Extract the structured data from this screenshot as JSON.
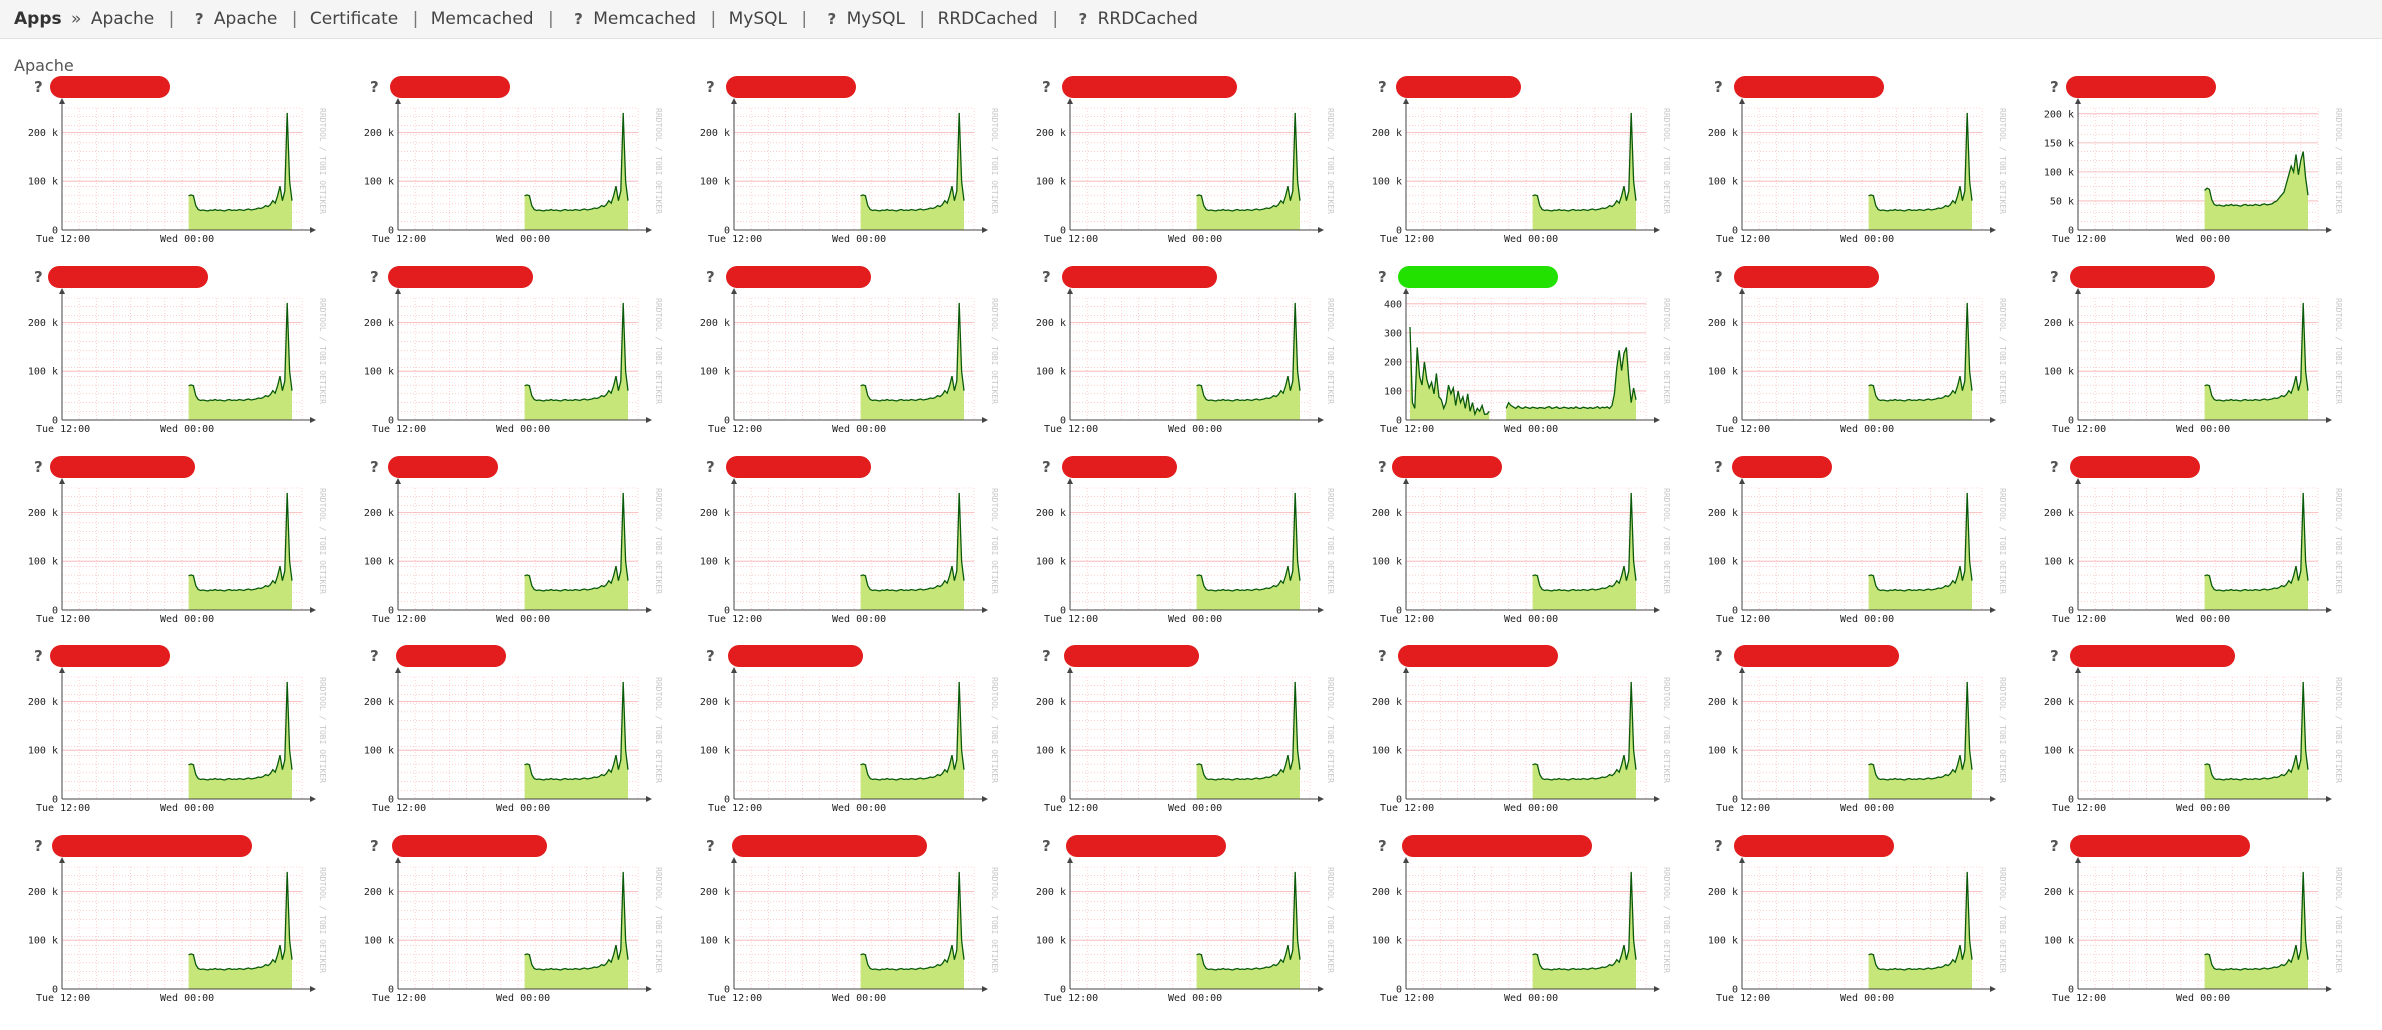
{
  "nav": {
    "root": "Apps",
    "sep": "»",
    "items": [
      {
        "label": "Apache"
      },
      {
        "label": "Apache"
      },
      {
        "label": "Certificate"
      },
      {
        "label": "Memcached"
      },
      {
        "label": "Memcached"
      },
      {
        "label": "MySQL"
      },
      {
        "label": "MySQL"
      },
      {
        "label": "RRDCached"
      },
      {
        "label": "RRDCached"
      }
    ],
    "help_icon": "question-icon"
  },
  "section": {
    "title": "Apache"
  },
  "colors": {
    "redaction": "#e31d1d",
    "highlight": "#22e000",
    "area": "#c7e67a",
    "line": "#0a5a0a",
    "grid": "#ffb0b0"
  },
  "chart_data": {
    "type": "area",
    "layout": "grid 7x5",
    "common": {
      "x_ticks": [
        "Tue 12:00",
        "Wed 00:00"
      ],
      "watermark": "RRDTOOL / TOBI OETIKER"
    },
    "series_shapes": {
      "default": {
        "ylim": [
          0,
          250000
        ],
        "y_ticks": [
          {
            "value": 0,
            "label": "0"
          },
          {
            "value": 100000,
            "label": "100 k"
          },
          {
            "value": 200000,
            "label": "200 k"
          }
        ],
        "values": [
          null,
          null,
          null,
          null,
          null,
          null,
          null,
          null,
          null,
          null,
          null,
          null,
          null,
          null,
          null,
          null,
          null,
          null,
          null,
          null,
          null,
          null,
          null,
          null,
          null,
          null,
          null,
          null,
          null,
          null,
          null,
          null,
          null,
          null,
          null,
          null,
          null,
          null,
          null,
          null,
          null,
          null,
          null,
          null,
          null,
          null,
          null,
          null,
          null,
          null,
          null,
          70000,
          72000,
          70000,
          50000,
          42000,
          40000,
          41000,
          40000,
          39000,
          41000,
          40000,
          42000,
          40000,
          41000,
          40000,
          39000,
          41000,
          42000,
          40000,
          41000,
          40000,
          42000,
          41000,
          40000,
          42000,
          43000,
          41000,
          42000,
          43000,
          45000,
          44000,
          46000,
          50000,
          48000,
          52000,
          60000,
          55000,
          70000,
          90000,
          60000,
          80000,
          240000,
          100000,
          60000
        ]
      },
      "variant_150k": {
        "ylim": [
          0,
          210000
        ],
        "y_ticks": [
          {
            "value": 0,
            "label": "0"
          },
          {
            "value": 50000,
            "label": "50 k"
          },
          {
            "value": 100000,
            "label": "100 k"
          },
          {
            "value": 150000,
            "label": "150 k"
          },
          {
            "value": 200000,
            "label": "200 k"
          }
        ],
        "values": [
          null,
          null,
          null,
          null,
          null,
          null,
          null,
          null,
          null,
          null,
          null,
          null,
          null,
          null,
          null,
          null,
          null,
          null,
          null,
          null,
          null,
          null,
          null,
          null,
          null,
          null,
          null,
          null,
          null,
          null,
          null,
          null,
          null,
          null,
          null,
          null,
          null,
          null,
          null,
          null,
          null,
          null,
          null,
          null,
          null,
          null,
          null,
          null,
          null,
          null,
          null,
          68000,
          72000,
          70000,
          52000,
          44000,
          42000,
          43000,
          42000,
          41000,
          43000,
          42000,
          44000,
          42000,
          43000,
          42000,
          41000,
          43000,
          44000,
          42000,
          43000,
          42000,
          44000,
          43000,
          42000,
          44000,
          45000,
          43000,
          44000,
          45000,
          48000,
          50000,
          55000,
          60000,
          65000,
          80000,
          95000,
          110000,
          100000,
          130000,
          95000,
          120000,
          135000,
          90000,
          60000
        ]
      },
      "variant_400": {
        "ylim": [
          0,
          420
        ],
        "y_ticks": [
          {
            "value": 0,
            "label": "0"
          },
          {
            "value": 100,
            "label": "100"
          },
          {
            "value": 200,
            "label": "200"
          },
          {
            "value": 300,
            "label": "300"
          },
          {
            "value": 400,
            "label": "400"
          }
        ],
        "values": [
          320,
          60,
          40,
          250,
          150,
          120,
          200,
          140,
          110,
          130,
          90,
          160,
          80,
          70,
          40,
          60,
          120,
          90,
          110,
          50,
          100,
          60,
          80,
          40,
          90,
          30,
          60,
          20,
          40,
          30,
          50,
          20,
          20,
          30,
          null,
          null,
          null,
          null,
          null,
          null,
          40,
          60,
          50,
          45,
          40,
          48,
          42,
          40,
          45,
          42,
          40,
          44,
          42,
          40,
          43,
          42,
          40,
          44,
          46,
          40,
          42,
          45,
          40,
          41,
          44,
          42,
          40,
          43,
          40,
          45,
          41,
          40,
          44,
          42,
          40,
          43,
          40,
          42,
          46,
          40,
          44,
          42,
          45,
          40,
          50,
          90,
          180,
          240,
          170,
          230,
          250,
          140,
          60,
          110,
          70
        ]
      }
    },
    "tiles": [
      {
        "shape": "default",
        "redacted": true
      },
      {
        "shape": "default",
        "redacted": true
      },
      {
        "shape": "default",
        "redacted": true
      },
      {
        "shape": "default",
        "redacted": true
      },
      {
        "shape": "default",
        "redacted": true
      },
      {
        "shape": "default",
        "redacted": true
      },
      {
        "shape": "variant_150k",
        "redacted": true
      },
      {
        "shape": "default",
        "redacted": true
      },
      {
        "shape": "default",
        "redacted": true
      },
      {
        "shape": "default",
        "redacted": true
      },
      {
        "shape": "default",
        "redacted": true
      },
      {
        "shape": "variant_400",
        "redacted": true,
        "highlight": true
      },
      {
        "shape": "default",
        "redacted": true
      },
      {
        "shape": "default",
        "redacted": true
      },
      {
        "shape": "default",
        "redacted": true
      },
      {
        "shape": "default",
        "redacted": true
      },
      {
        "shape": "default",
        "redacted": true
      },
      {
        "shape": "default",
        "redacted": true
      },
      {
        "shape": "default",
        "redacted": true
      },
      {
        "shape": "default",
        "redacted": true
      },
      {
        "shape": "default",
        "redacted": true
      },
      {
        "shape": "default",
        "redacted": true
      },
      {
        "shape": "default",
        "redacted": true
      },
      {
        "shape": "default",
        "redacted": true
      },
      {
        "shape": "default",
        "redacted": true
      },
      {
        "shape": "default",
        "redacted": true
      },
      {
        "shape": "default",
        "redacted": true
      },
      {
        "shape": "default",
        "redacted": true
      },
      {
        "shape": "default",
        "redacted": true
      },
      {
        "shape": "default",
        "redacted": true
      },
      {
        "shape": "default",
        "redacted": true
      },
      {
        "shape": "default",
        "redacted": true
      },
      {
        "shape": "default",
        "redacted": true
      },
      {
        "shape": "default",
        "redacted": true
      },
      {
        "shape": "default",
        "redacted": true
      }
    ]
  }
}
